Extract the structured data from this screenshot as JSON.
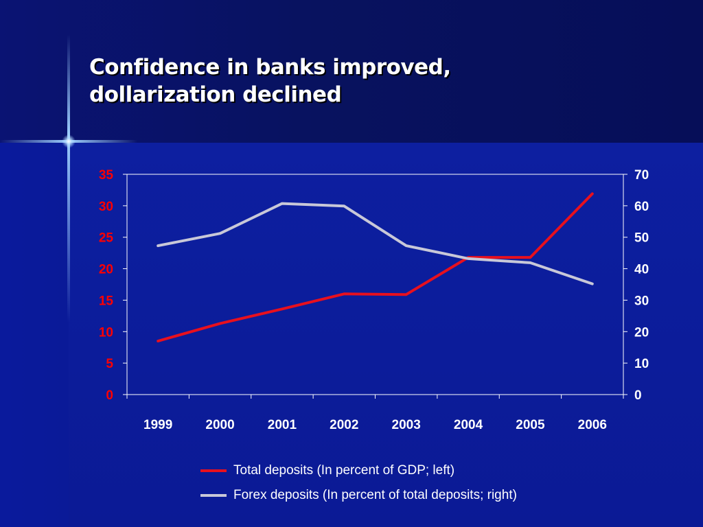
{
  "slide": {
    "title_line1": "Confidence in banks improved,",
    "title_line2": "dollarization declined"
  },
  "colors": {
    "background": "#0b1a95",
    "left_axis": "#ff0000",
    "right_axis": "#ffffff",
    "series_total": "#e8101e",
    "series_forex": "#c8c8d8"
  },
  "chart_data": {
    "type": "line",
    "categories": [
      "1999",
      "2000",
      "2001",
      "2002",
      "2003",
      "2004",
      "2005",
      "2006"
    ],
    "y_left": {
      "ticks": [
        "0",
        "5",
        "10",
        "15",
        "20",
        "25",
        "30",
        "35"
      ],
      "ylim": [
        0,
        35
      ]
    },
    "y_right": {
      "ticks": [
        "0",
        "10",
        "20",
        "30",
        "40",
        "50",
        "60",
        "70"
      ],
      "ylim": [
        0,
        70
      ]
    },
    "series": [
      {
        "name": "Total deposits (In percent of GDP; left)",
        "axis": "left",
        "values": [
          8.5,
          11.3,
          13.6,
          16.0,
          15.9,
          21.8,
          21.8,
          31.9
        ]
      },
      {
        "name": "Forex deposits (In percent of total deposits; right)",
        "axis": "right",
        "values": [
          47.3,
          51.2,
          60.7,
          59.9,
          47.3,
          43.2,
          41.9,
          35.2
        ]
      }
    ],
    "grid": false,
    "legend_position": "bottom"
  }
}
